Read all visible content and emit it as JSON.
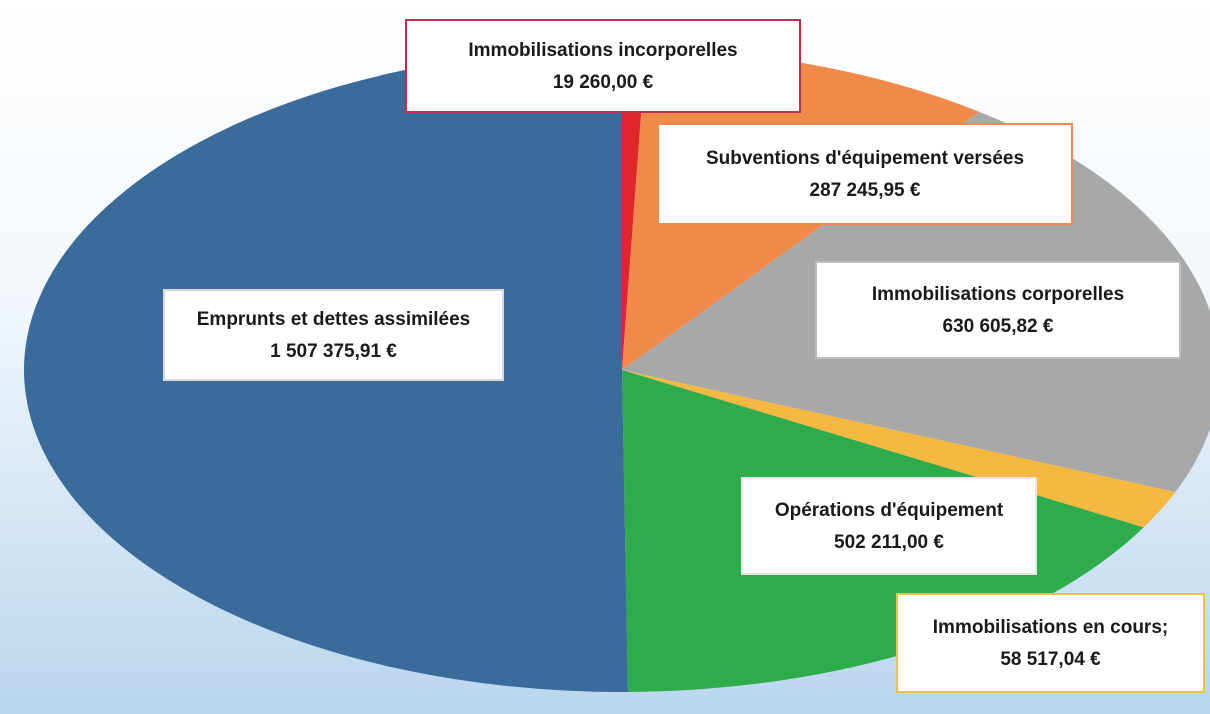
{
  "chart_data": {
    "type": "pie",
    "categories": [
      "Immobilisations incorporelles",
      "Subventions d'équipement versées",
      "Immobilisations corporelles",
      "Immobilisations en cours;",
      "Opérations d'équipement",
      "Emprunts et dettes assimilées"
    ],
    "values": [
      19260.0,
      287245.95,
      630605.82,
      58517.04,
      502211.0,
      1507375.91
    ],
    "value_labels": [
      "19 260,00 €",
      "287 245,95 €",
      "630 605,82 €",
      "58 517,04 €",
      "502 211,00 €",
      "1 507 375,91 €"
    ],
    "colors": [
      "#e0262b",
      "#f08a4b",
      "#a8a8a8",
      "#f5b840",
      "#2eab4a",
      "#3b6b9a"
    ]
  }
}
